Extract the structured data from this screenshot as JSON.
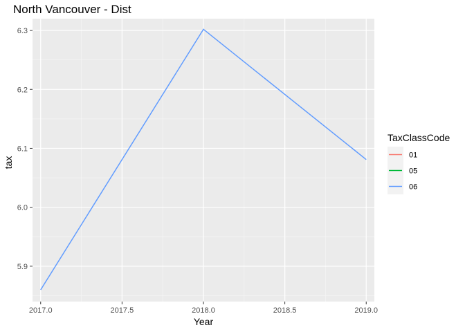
{
  "chart_data": {
    "type": "line",
    "title": "North Vancouver - Dist",
    "xlabel": "Year",
    "ylabel": "tax",
    "xlim": [
      2016.95,
      2019.05
    ],
    "ylim": [
      5.84,
      6.32
    ],
    "xticks": [
      2017.0,
      2017.5,
      2018.0,
      2018.5,
      2019.0
    ],
    "xtick_labels": [
      "2017.0",
      "2017.5",
      "2018.0",
      "2018.5",
      "2019.0"
    ],
    "yticks": [
      5.9,
      6.0,
      6.1,
      6.2,
      6.3
    ],
    "ytick_labels": [
      "5.9",
      "6.0",
      "6.1",
      "6.2",
      "6.3"
    ],
    "grid": true,
    "legend": {
      "title": "TaxClassCode",
      "position": "right"
    },
    "series": [
      {
        "name": "01",
        "color": "#F8766D",
        "x": [],
        "y": []
      },
      {
        "name": "05",
        "color": "#00BA38",
        "x": [],
        "y": []
      },
      {
        "name": "06",
        "color": "#619CFF",
        "x": [
          2017.0,
          2018.0,
          2019.0
        ],
        "y": [
          5.86,
          6.302,
          6.081
        ]
      }
    ]
  }
}
